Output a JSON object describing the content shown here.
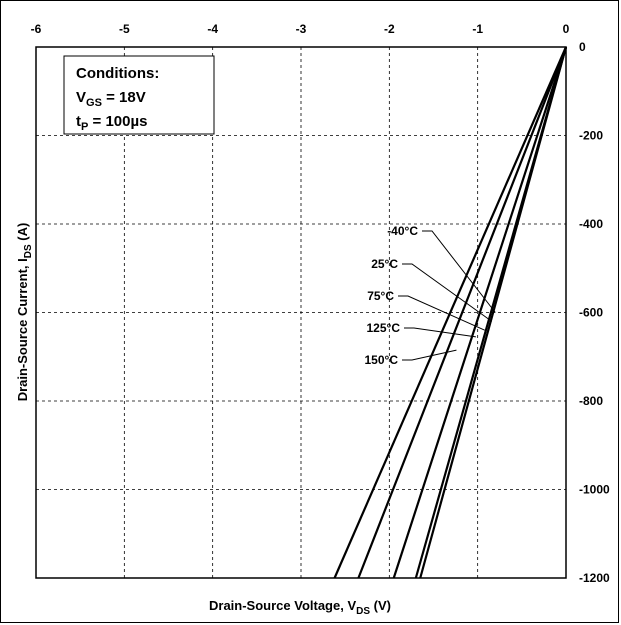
{
  "chart_data": {
    "type": "line",
    "xlabel": {
      "main": "Drain-Source Voltage, V",
      "sub": "DS",
      "suffix": " (V)"
    },
    "ylabel": {
      "main": "Drain-Source Current, I",
      "sub": "DS",
      "suffix": " (A)"
    },
    "xlim": [
      -6,
      0
    ],
    "ylim": [
      -1200,
      0
    ],
    "x_ticks": [
      -6,
      -5,
      -4,
      -3,
      -2,
      -1,
      0
    ],
    "y_ticks": [
      0,
      -200,
      -400,
      -600,
      -800,
      -1000,
      -1200
    ],
    "x_tick_position": "top",
    "y_tick_position": "right",
    "grid": "dashed",
    "conditions": {
      "title": "Conditions:",
      "line1": {
        "main": "V",
        "sub": "GS",
        "suffix": " = 18V"
      },
      "line2": {
        "main": "t",
        "sub": "P",
        "suffix": " = 100µs"
      }
    },
    "series": [
      {
        "name": "-40°C",
        "x": [
          0,
          -1.7
        ],
        "y": [
          0,
          -1200
        ]
      },
      {
        "name": "25°C",
        "x": [
          0,
          -1.65
        ],
        "y": [
          0,
          -1200
        ]
      },
      {
        "name": "75°C",
        "x": [
          0,
          -1.95
        ],
        "y": [
          0,
          -1200
        ]
      },
      {
        "name": "125°C",
        "x": [
          0,
          -2.35
        ],
        "y": [
          0,
          -1200
        ]
      },
      {
        "name": "150°C",
        "x": [
          0,
          -2.62
        ],
        "y": [
          0,
          -1200
        ]
      }
    ],
    "label_anchors": [
      {
        "name": "-40°C",
        "x": -0.8,
        "y": -600
      },
      {
        "name": "25°C",
        "x": -0.84,
        "y": -620
      },
      {
        "name": "75°C",
        "x": -0.92,
        "y": -640
      },
      {
        "name": "125°C",
        "x": -1.02,
        "y": -655
      },
      {
        "name": "150°C",
        "x": -1.24,
        "y": -685
      }
    ]
  }
}
